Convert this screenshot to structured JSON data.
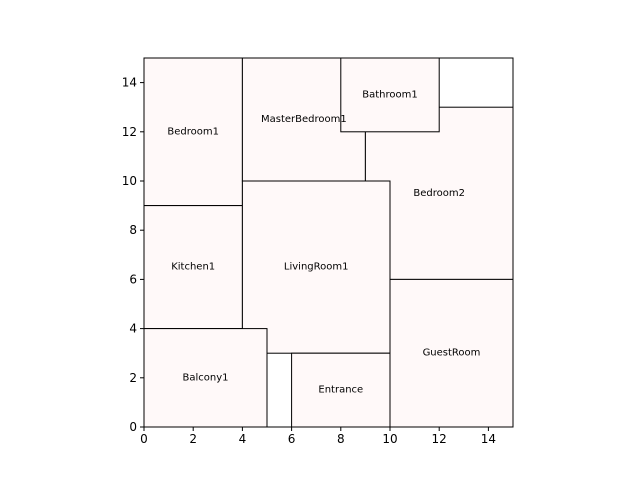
{
  "chart_data": {
    "type": "floor-plan",
    "xlim": [
      0,
      15
    ],
    "ylim": [
      0,
      15
    ],
    "x_ticks": [
      0,
      2,
      4,
      6,
      8,
      10,
      12,
      14
    ],
    "y_ticks": [
      0,
      2,
      4,
      6,
      8,
      10,
      12,
      14
    ],
    "room_fill": "#fff9f9",
    "edge_color": "#000000",
    "rooms": [
      {
        "name": "Bedroom1",
        "x0": 0,
        "y0": 9,
        "x1": 4,
        "y1": 15
      },
      {
        "name": "MasterBedroom1",
        "x0": 4,
        "y0": 10,
        "x1": 9,
        "y1": 15
      },
      {
        "name": "Bedroom2",
        "x0": 9,
        "y0": 6,
        "x1": 15,
        "y1": 13
      },
      {
        "name": "Bathroom1",
        "x0": 8,
        "y0": 12,
        "x1": 12,
        "y1": 15
      },
      {
        "name": "Kitchen1",
        "x0": 0,
        "y0": 4,
        "x1": 4,
        "y1": 9
      },
      {
        "name": "LivingRoom1",
        "x0": 4,
        "y0": 3,
        "x1": 10,
        "y1": 10
      },
      {
        "name": "GuestRoom",
        "x0": 10,
        "y0": 0,
        "x1": 15,
        "y1": 6
      },
      {
        "name": "Entrance",
        "x0": 6,
        "y0": 0,
        "x1": 10,
        "y1": 3
      },
      {
        "name": "Balcony1",
        "x0": 0,
        "y0": 0,
        "x1": 5,
        "y1": 4
      }
    ]
  }
}
